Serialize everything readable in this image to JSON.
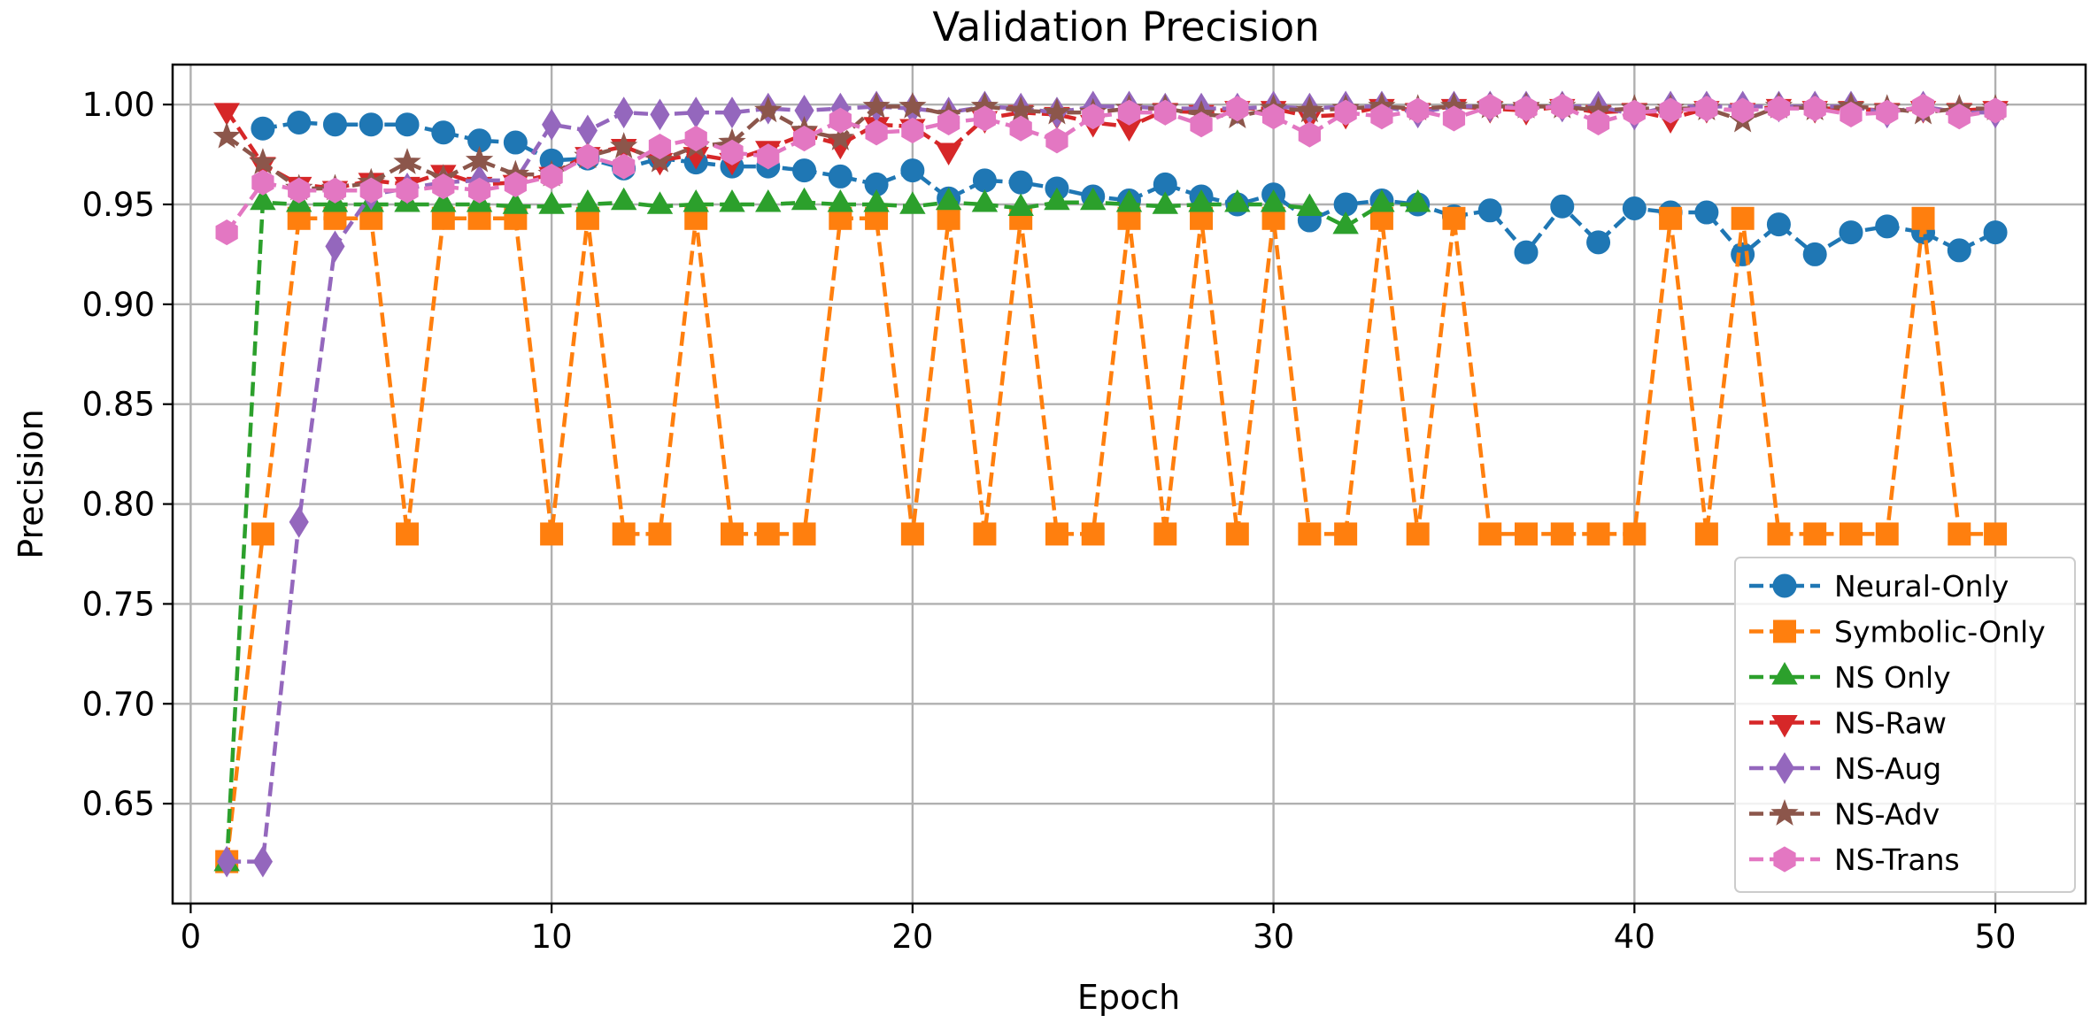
{
  "chart_data": {
    "type": "line",
    "title": "Validation Precision",
    "xlabel": "Epoch",
    "ylabel": "Precision",
    "xlim": [
      -0.5,
      52.5
    ],
    "ylim": [
      0.6,
      1.02
    ],
    "xticks": [
      0,
      10,
      20,
      30,
      40,
      50
    ],
    "yticks": [
      0.65,
      0.7,
      0.75,
      0.8,
      0.85,
      0.9,
      0.95,
      1.0
    ],
    "grid": true,
    "legend_position": "lower-right",
    "series": [
      {
        "name": "Neural-Only",
        "color": "#1f77b4",
        "marker": "circle",
        "x": [
          2,
          3,
          4,
          5,
          6,
          7,
          8,
          9,
          10,
          11,
          12,
          13,
          14,
          15,
          16,
          17,
          18,
          19,
          20,
          21,
          22,
          23,
          24,
          25,
          26,
          27,
          28,
          29,
          30,
          31,
          32,
          33,
          34,
          35,
          36,
          37,
          38,
          39,
          40,
          41,
          42,
          43,
          44,
          45,
          46,
          47,
          48,
          49,
          50
        ],
        "values": [
          0.988,
          0.991,
          0.99,
          0.99,
          0.99,
          0.986,
          0.982,
          0.981,
          0.972,
          0.973,
          0.968,
          0.973,
          0.971,
          0.969,
          0.969,
          0.967,
          0.964,
          0.96,
          0.967,
          0.953,
          0.962,
          0.961,
          0.958,
          0.954,
          0.952,
          0.96,
          0.954,
          0.95,
          0.955,
          0.942,
          0.95,
          0.952,
          0.95,
          0.944,
          0.947,
          0.926,
          0.949,
          0.931,
          0.948,
          0.946,
          0.946,
          0.925,
          0.94,
          0.925,
          0.936,
          0.939,
          0.936,
          0.927,
          0.936
        ]
      },
      {
        "name": "Symbolic-Only",
        "color": "#ff7f0e",
        "marker": "square",
        "x": [
          1,
          2,
          3,
          4,
          5,
          6,
          7,
          8,
          9,
          10,
          11,
          12,
          13,
          14,
          15,
          16,
          17,
          18,
          19,
          20,
          21,
          22,
          23,
          24,
          25,
          26,
          27,
          28,
          29,
          30,
          31,
          32,
          33,
          34,
          35,
          36,
          37,
          38,
          39,
          40,
          41,
          42,
          43,
          44,
          45,
          46,
          47,
          48,
          49,
          50
        ],
        "values": [
          0.621,
          0.785,
          0.943,
          0.943,
          0.943,
          0.785,
          0.943,
          0.943,
          0.943,
          0.785,
          0.943,
          0.785,
          0.785,
          0.943,
          0.785,
          0.785,
          0.785,
          0.943,
          0.943,
          0.785,
          0.943,
          0.785,
          0.943,
          0.785,
          0.785,
          0.943,
          0.785,
          0.943,
          0.785,
          0.943,
          0.785,
          0.785,
          0.943,
          0.785,
          0.943,
          0.785,
          0.785,
          0.785,
          0.785,
          0.785,
          0.943,
          0.785,
          0.943,
          0.785,
          0.785,
          0.785,
          0.785,
          0.943,
          0.785,
          0.785
        ]
      },
      {
        "name": "NS Only",
        "color": "#2ca02c",
        "marker": "triangle-up",
        "x": [
          1,
          2,
          3,
          4,
          5,
          6,
          7,
          8,
          9,
          10,
          11,
          12,
          13,
          14,
          15,
          16,
          17,
          18,
          19,
          20,
          21,
          22,
          23,
          24,
          25,
          26,
          27,
          28,
          29,
          30,
          31,
          32,
          33,
          34
        ],
        "values": [
          0.62,
          0.951,
          0.95,
          0.95,
          0.95,
          0.95,
          0.95,
          0.95,
          0.949,
          0.949,
          0.95,
          0.951,
          0.949,
          0.95,
          0.95,
          0.95,
          0.951,
          0.95,
          0.95,
          0.949,
          0.951,
          0.95,
          0.948,
          0.951,
          0.951,
          0.95,
          0.949,
          0.95,
          0.95,
          0.95,
          0.948,
          0.939,
          0.95,
          0.95
        ]
      },
      {
        "name": "NS-Raw",
        "color": "#d62728",
        "marker": "triangle-down",
        "x": [
          1,
          2,
          3,
          4,
          5,
          6,
          7,
          8,
          9,
          10,
          11,
          12,
          13,
          14,
          15,
          16,
          17,
          18,
          19,
          20,
          21,
          22,
          23,
          24,
          25,
          26,
          27,
          28,
          29,
          30,
          31,
          32,
          33,
          34,
          35,
          36,
          37,
          38,
          39,
          40,
          41,
          42,
          43,
          44,
          45,
          46,
          47,
          48,
          49,
          50
        ],
        "values": [
          0.997,
          0.97,
          0.96,
          0.958,
          0.962,
          0.96,
          0.966,
          0.96,
          0.961,
          0.965,
          0.975,
          0.979,
          0.972,
          0.975,
          0.972,
          0.978,
          0.985,
          0.98,
          0.99,
          0.989,
          0.977,
          0.993,
          0.996,
          0.995,
          0.991,
          0.989,
          0.997,
          0.996,
          0.998,
          0.998,
          0.994,
          0.995,
          0.999,
          0.997,
          0.999,
          0.998,
          0.997,
          0.999,
          0.996,
          0.997,
          0.993,
          0.998,
          0.997,
          0.999,
          0.998,
          0.998,
          0.997,
          0.998,
          0.997,
          0.998
        ]
      },
      {
        "name": "NS-Aug",
        "color": "#9467bd",
        "marker": "diamond",
        "x": [
          1,
          2,
          3,
          4,
          5,
          6,
          7,
          8,
          9,
          10,
          11,
          12,
          13,
          14,
          15,
          16,
          17,
          18,
          19,
          20,
          21,
          22,
          23,
          24,
          25,
          26,
          27,
          28,
          29,
          30,
          31,
          32,
          33,
          34,
          35,
          36,
          37,
          38,
          39,
          40,
          41,
          42,
          43,
          44,
          45,
          46,
          47,
          48,
          49,
          50
        ],
        "values": [
          0.621,
          0.621,
          0.791,
          0.929,
          0.955,
          0.958,
          0.961,
          0.962,
          0.962,
          0.99,
          0.987,
          0.996,
          0.995,
          0.996,
          0.996,
          0.998,
          0.997,
          0.998,
          0.999,
          0.998,
          0.996,
          0.999,
          0.998,
          0.996,
          0.999,
          0.999,
          0.998,
          0.998,
          0.998,
          0.999,
          0.998,
          0.999,
          0.999,
          0.996,
          0.999,
          0.999,
          0.999,
          0.999,
          0.999,
          0.995,
          0.999,
          0.999,
          0.999,
          0.999,
          0.999,
          0.999,
          0.996,
          0.999,
          0.996,
          0.996
        ]
      },
      {
        "name": "NS-Adv",
        "color": "#8c564b",
        "marker": "star",
        "x": [
          1,
          2,
          3,
          4,
          5,
          6,
          7,
          8,
          9,
          10,
          11,
          12,
          13,
          14,
          15,
          16,
          17,
          18,
          19,
          20,
          21,
          22,
          23,
          24,
          25,
          26,
          27,
          28,
          29,
          30,
          31,
          32,
          33,
          34,
          35,
          36,
          37,
          38,
          39,
          40,
          41,
          42,
          43,
          44,
          45,
          46,
          47,
          48,
          49,
          50
        ],
        "values": [
          0.984,
          0.971,
          0.958,
          0.958,
          0.961,
          0.971,
          0.963,
          0.972,
          0.965,
          0.965,
          0.974,
          0.979,
          0.972,
          0.979,
          0.981,
          0.997,
          0.987,
          0.983,
          0.999,
          0.999,
          0.995,
          0.999,
          0.997,
          0.996,
          0.996,
          0.998,
          0.998,
          0.995,
          0.994,
          0.998,
          0.997,
          0.998,
          0.999,
          0.998,
          0.999,
          0.999,
          0.999,
          0.999,
          0.997,
          0.998,
          0.998,
          0.998,
          0.992,
          0.999,
          0.998,
          0.999,
          0.998,
          0.996,
          0.998,
          0.998
        ]
      },
      {
        "name": "NS-Trans",
        "color": "#e377c2",
        "marker": "hexagon",
        "x": [
          1,
          2,
          3,
          4,
          5,
          6,
          7,
          8,
          9,
          10,
          11,
          12,
          13,
          14,
          15,
          16,
          17,
          18,
          19,
          20,
          21,
          22,
          23,
          24,
          25,
          26,
          27,
          28,
          29,
          30,
          31,
          32,
          33,
          34,
          35,
          36,
          37,
          38,
          39,
          40,
          41,
          42,
          43,
          44,
          45,
          46,
          47,
          48,
          49,
          50
        ],
        "values": [
          0.936,
          0.961,
          0.957,
          0.957,
          0.957,
          0.957,
          0.959,
          0.957,
          0.96,
          0.964,
          0.974,
          0.969,
          0.979,
          0.983,
          0.976,
          0.974,
          0.983,
          0.992,
          0.986,
          0.987,
          0.991,
          0.993,
          0.988,
          0.982,
          0.994,
          0.996,
          0.996,
          0.99,
          0.998,
          0.994,
          0.985,
          0.996,
          0.994,
          0.997,
          0.993,
          0.999,
          0.998,
          0.999,
          0.991,
          0.996,
          0.997,
          0.998,
          0.997,
          0.998,
          0.998,
          0.995,
          0.996,
          0.999,
          0.994,
          0.997
        ]
      }
    ]
  }
}
